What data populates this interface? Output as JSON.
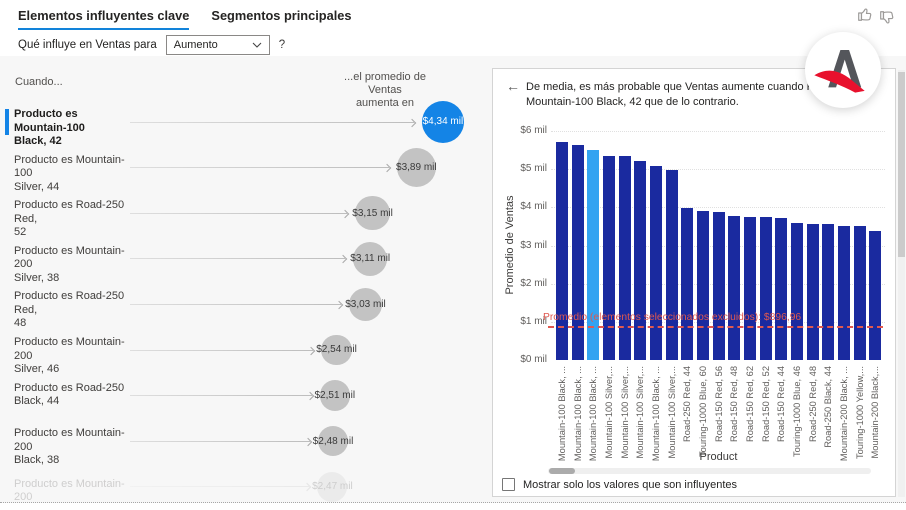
{
  "tabs": [
    {
      "label": "Elementos influyentes clave",
      "active": true
    },
    {
      "label": "Segmentos principales",
      "active": false
    }
  ],
  "feedback_icons": {
    "like": "thumbs-up",
    "dislike": "thumbs-down"
  },
  "question": {
    "prefix": "Qué influye en Ventas para",
    "dropdown_value": "Aumento",
    "help_label": "?"
  },
  "influencers_panel": {
    "when_header": "Cuando...",
    "then_header_line1": "...el promedio de Ventas",
    "then_header_line2": "aumenta en",
    "items": [
      {
        "label_line1": "Producto es Mountain-100",
        "label_line2": "Black, 42",
        "value": "$4,34 mil",
        "selected": true,
        "faded": false
      },
      {
        "label_line1": "Producto es Mountain-100",
        "label_line2": "Silver, 44",
        "value": "$3,89 mil",
        "selected": false,
        "faded": false
      },
      {
        "label_line1": "Producto es Road-250 Red,",
        "label_line2": "52",
        "value": "$3,15 mil",
        "selected": false,
        "faded": false
      },
      {
        "label_line1": "Producto es Mountain-200",
        "label_line2": "Silver, 38",
        "value": "$3,11 mil",
        "selected": false,
        "faded": false
      },
      {
        "label_line1": "Producto es Road-250 Red,",
        "label_line2": "48",
        "value": "$3,03 mil",
        "selected": false,
        "faded": false
      },
      {
        "label_line1": "Producto es Mountain-200",
        "label_line2": "Silver, 46",
        "value": "$2,54 mil",
        "selected": false,
        "faded": false
      },
      {
        "label_line1": "Producto es Road-250",
        "label_line2": "Black, 44",
        "value": "$2,51 mil",
        "selected": false,
        "faded": false
      },
      {
        "label_line1": "Producto es Mountain-200",
        "label_line2": "Black, 38",
        "value": "$2,48 mil",
        "selected": false,
        "faded": false
      },
      {
        "label_line1": "Producto es Mountain-200",
        "label_line2": "",
        "value": "$2,47 mil",
        "selected": false,
        "faded": true
      }
    ]
  },
  "detail_panel": {
    "back_icon": "←",
    "headline": "De media, es más probable que Ventas aumente cuando Producto es Mountain-100 Black, 42 que de lo contrario.",
    "checkbox_label": "Mostrar solo los valores que son influyentes",
    "checkbox_checked": false,
    "chart_data": {
      "type": "bar",
      "ylabel": "Promedio de Ventas",
      "xlabel": "Product",
      "ylim_mil": [
        0,
        6
      ],
      "ytick_labels": [
        "$0 mil",
        "$1 mil",
        "$2 mil",
        "$3 mil",
        "$4 mil",
        "$5 mil",
        "$6 mil"
      ],
      "grid": "dotted-horizontal",
      "legend": "none",
      "categories": [
        "Mountain-100 Black, ...",
        "Mountain-100 Black, ...",
        "Mountain-100 Black, ...",
        "Mountain-100 Silver,...",
        "Mountain-100 Silver,...",
        "Mountain-100 Silver,...",
        "Mountain-100 Black, ...",
        "Mountain-100 Silver,...",
        "Road-250 Red, 44",
        "Touring-1000 Blue, 60",
        "Road-150 Red, 56",
        "Road-150 Red, 48",
        "Road-150 Red, 62",
        "Road-150 Red, 52",
        "Road-150 Red, 44",
        "Touring-1000 Blue, 46",
        "Road-250 Red, 48",
        "Road-250 Black, 44",
        "Mountain-200 Black, ...",
        "Touring-1000 Yellow,...",
        "Mountain-200 Black,..."
      ],
      "values_mil": [
        5.72,
        5.64,
        5.51,
        5.35,
        5.34,
        5.22,
        5.07,
        4.99,
        3.98,
        3.9,
        3.88,
        3.76,
        3.75,
        3.74,
        3.72,
        3.59,
        3.57,
        3.56,
        3.52,
        3.51,
        3.38
      ],
      "selected_index": 2,
      "reference_line": {
        "label": "Promedio (elementos seleccionados excluidos): $896,96",
        "value_mil": 0.897
      }
    }
  },
  "colors": {
    "accent_blue": "#1484e6",
    "tab_underline": "#1283da",
    "bar_navy": "#1a2a9f",
    "bar_selected": "#33a3f1",
    "reference_red": "#e0584f",
    "bubble_gray": "#c3c3c3",
    "content_background": "#f7f7f7"
  },
  "watermark": {
    "description": "letter-A logo with red swoosh in white circle"
  }
}
